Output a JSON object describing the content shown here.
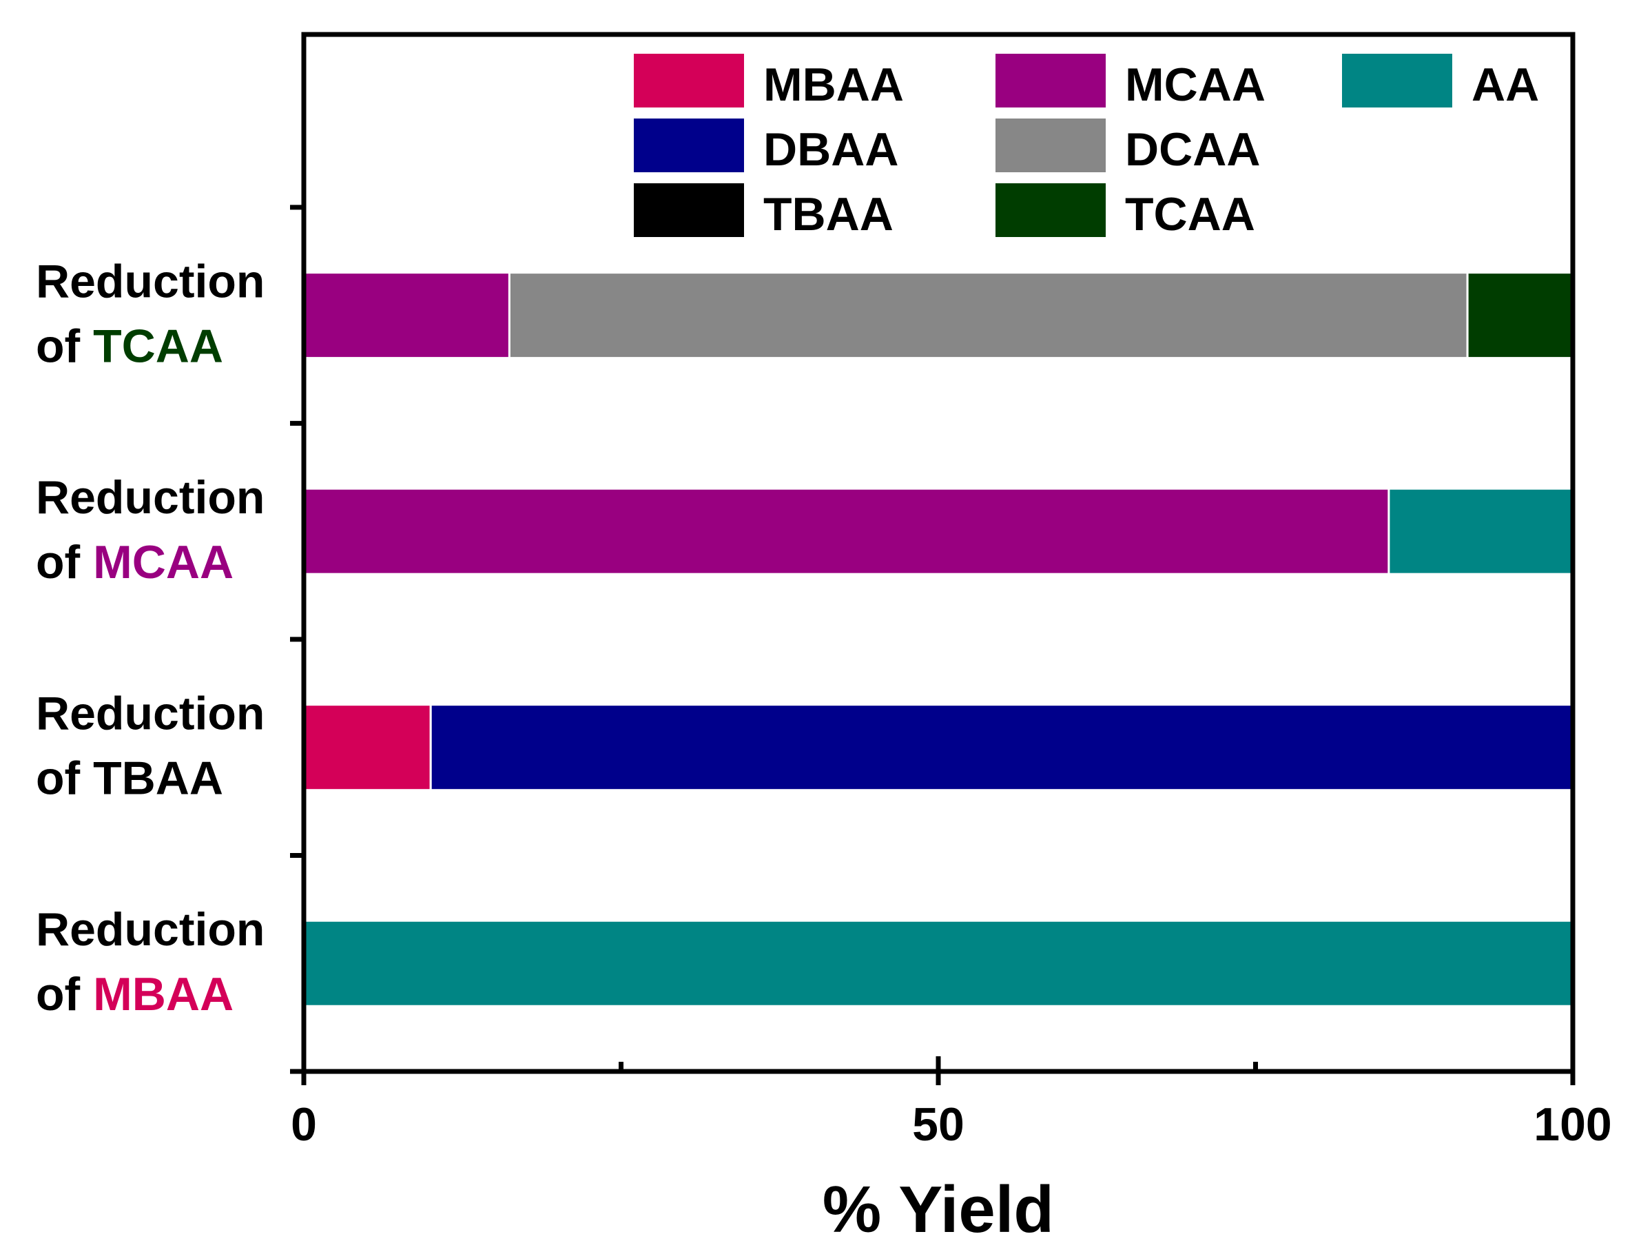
{
  "chart_data": {
    "type": "bar",
    "orientation": "horizontal",
    "stacked": true,
    "xlabel": "% Yield",
    "ylabel": "",
    "xlim": [
      0,
      100
    ],
    "x_ticks": [
      0,
      50,
      100
    ],
    "x_minor_ticks": [
      25,
      75
    ],
    "grid": false,
    "legend_position": "top-right",
    "categories": [
      {
        "prefix": "Reduction",
        "of": "of",
        "species": "TCAA",
        "color": "#003d00"
      },
      {
        "prefix": "Reduction",
        "of": "of",
        "species": "MCAA",
        "color": "#990080"
      },
      {
        "prefix": "Reduction",
        "of": "of",
        "species": "TBAA",
        "color": "#000000"
      },
      {
        "prefix": "Reduction",
        "of": "of",
        "species": "MBAA",
        "color": "#d40058"
      }
    ],
    "series": [
      {
        "name": "MBAA",
        "color": "#d40058",
        "values": [
          0,
          0,
          10,
          0
        ]
      },
      {
        "name": "DBAA",
        "color": "#00008b",
        "values": [
          0,
          0,
          90,
          0
        ]
      },
      {
        "name": "TBAA",
        "color": "#000000",
        "values": [
          0,
          0,
          0,
          0
        ]
      },
      {
        "name": "MCAA",
        "color": "#990080",
        "values": [
          16.2,
          85.5,
          0,
          0
        ]
      },
      {
        "name": "DCAA",
        "color": "#878787",
        "values": [
          75.5,
          0,
          0,
          0
        ]
      },
      {
        "name": "TCAA",
        "color": "#003d00",
        "values": [
          8.3,
          0,
          0,
          0
        ]
      },
      {
        "name": "AA",
        "color": "#008584",
        "values": [
          0,
          14.5,
          0,
          100
        ]
      }
    ],
    "legend_order": [
      [
        "MBAA",
        "MCAA",
        "AA"
      ],
      [
        "DBAA",
        "DCAA"
      ],
      [
        "TBAA",
        "TCAA"
      ]
    ]
  }
}
